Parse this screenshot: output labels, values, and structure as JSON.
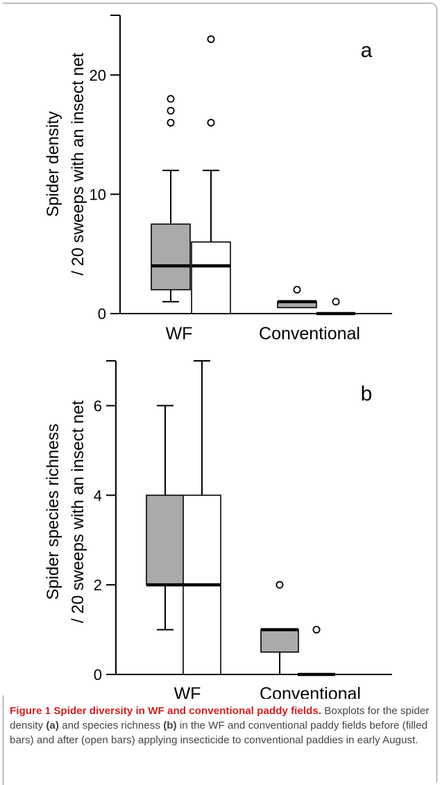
{
  "chart_data": [
    {
      "type": "box",
      "panel_letter": "a",
      "ylabel_line1": "Spider density",
      "ylabel_line2": "/ 20 sweeps with an insect net",
      "ylim": [
        0,
        25
      ],
      "yticks": [
        0,
        10,
        20
      ],
      "categories": [
        "WF",
        "Conventional"
      ],
      "series": [
        {
          "fill": "#aaaaaa",
          "boxes": [
            {
              "category": "WF",
              "whisker_low": 1,
              "q1": 2,
              "median": 4,
              "q3": 7.5,
              "whisker_high": 12,
              "outliers": [
                16,
                17,
                18
              ]
            },
            {
              "category": "Conventional",
              "whisker_low": 0.5,
              "q1": 0.5,
              "median": 1,
              "q3": 1,
              "whisker_high": 1,
              "outliers": [
                2
              ]
            }
          ]
        },
        {
          "fill": "#ffffff",
          "boxes": [
            {
              "category": "WF",
              "whisker_low": 0,
              "q1": 0,
              "median": 4,
              "q3": 6,
              "whisker_high": 12,
              "outliers": [
                16,
                23
              ]
            },
            {
              "category": "Conventional",
              "whisker_low": 0,
              "q1": 0,
              "median": 0,
              "q3": 0,
              "whisker_high": 0,
              "outliers": [
                1
              ]
            }
          ]
        }
      ]
    },
    {
      "type": "box",
      "panel_letter": "b",
      "ylabel_line1": "Spider species richness",
      "ylabel_line2": "/ 20 sweeps with an insect net",
      "ylim": [
        0,
        7
      ],
      "yticks": [
        0,
        2,
        4,
        6
      ],
      "categories": [
        "WF",
        "Conventional"
      ],
      "series": [
        {
          "fill": "#aaaaaa",
          "boxes": [
            {
              "category": "WF",
              "whisker_low": 1,
              "q1": 2,
              "median": 2,
              "q3": 4,
              "whisker_high": 6,
              "outliers": []
            },
            {
              "category": "Conventional",
              "whisker_low": 0,
              "q1": 0.5,
              "median": 1,
              "q3": 1,
              "whisker_high": 1,
              "outliers": [
                2
              ]
            }
          ]
        },
        {
          "fill": "#ffffff",
          "boxes": [
            {
              "category": "WF",
              "whisker_low": 0,
              "q1": 0,
              "median": 2,
              "q3": 4,
              "whisker_high": 7,
              "outliers": []
            },
            {
              "category": "Conventional",
              "whisker_low": 0,
              "q1": 0,
              "median": 0,
              "q3": 0,
              "whisker_high": 0,
              "outliers": [
                1
              ]
            }
          ]
        }
      ]
    }
  ],
  "caption": {
    "title": "Figure 1 Spider diversity in WF and conventional paddy fields.",
    "part1": "Boxplots for the spider density ",
    "ref_a": "(a)",
    "part2": " and species richness ",
    "ref_b": "(b)",
    "part3": " in the WF and conventional paddy fields before (filled bars) and after (open bars) applying insecticide to conventional paddies in early August."
  }
}
